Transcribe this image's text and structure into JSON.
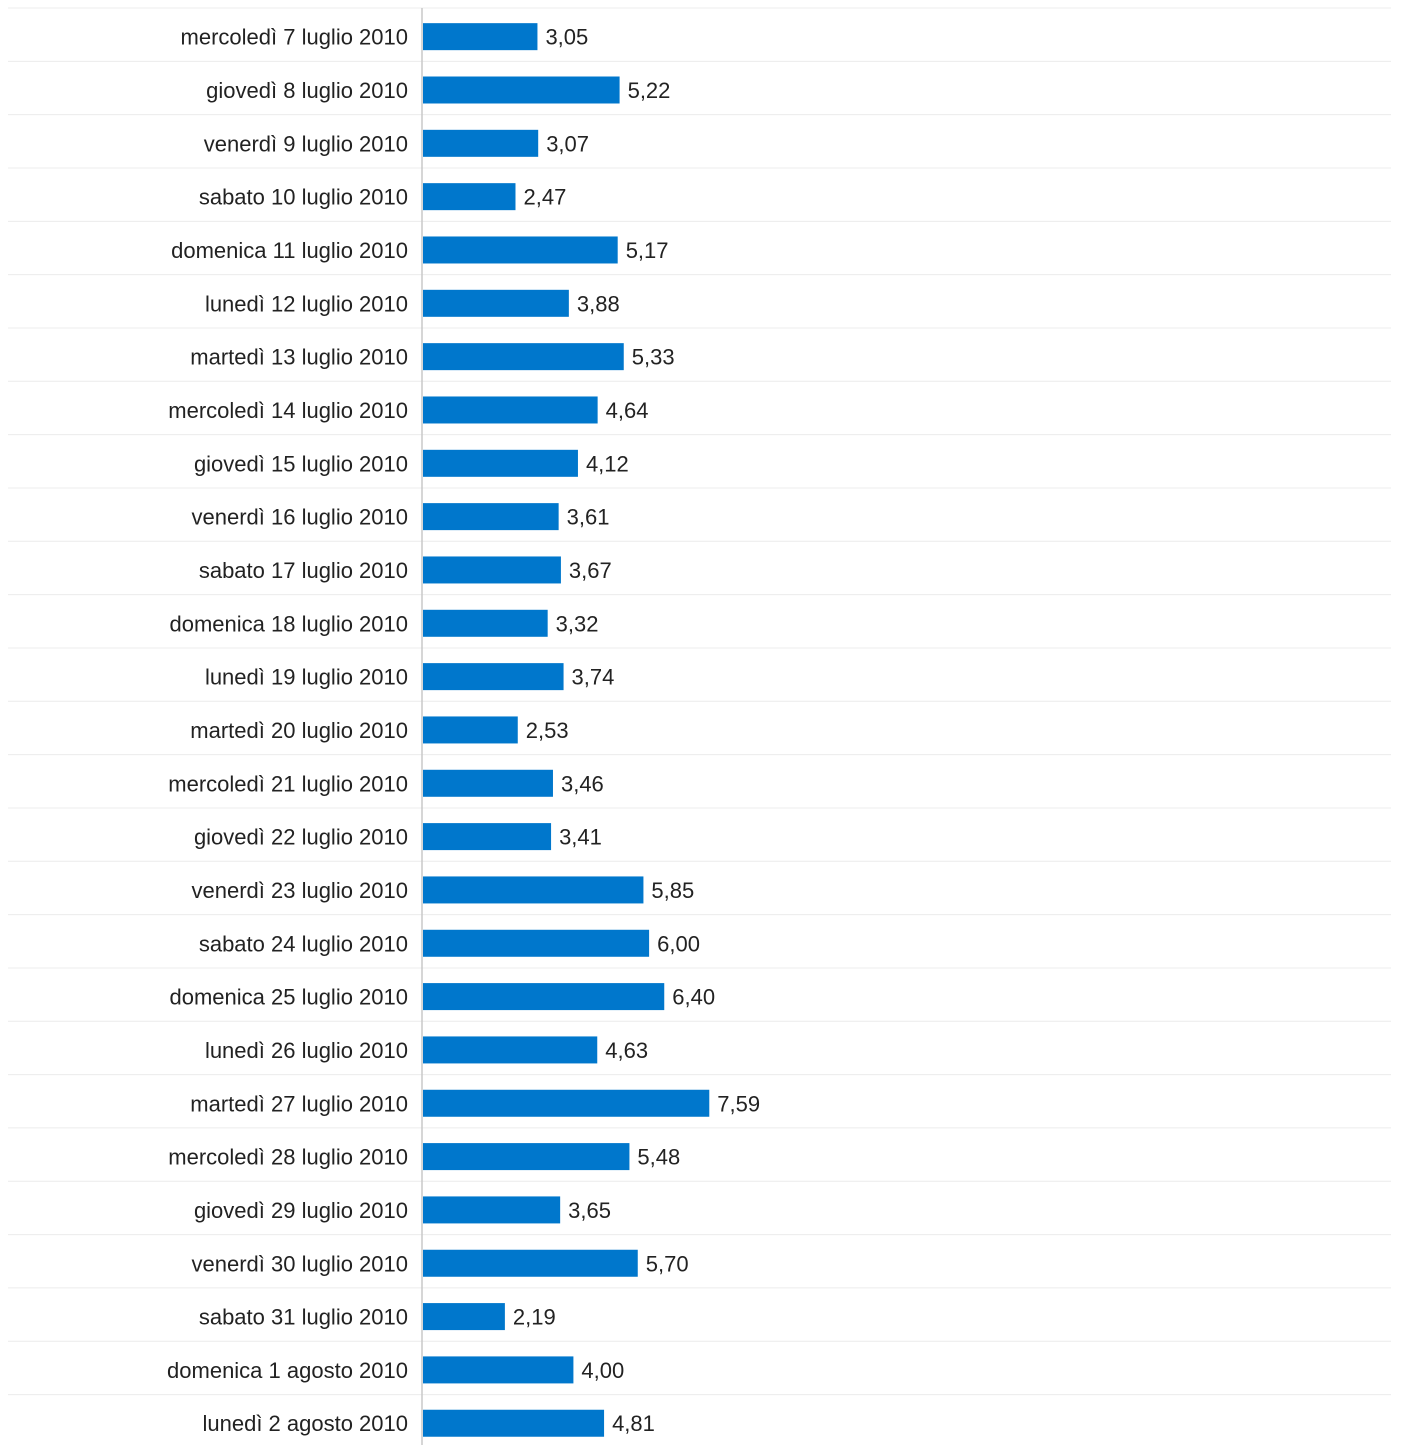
{
  "chart_data": {
    "type": "bar",
    "orientation": "horizontal",
    "title": "",
    "xlabel": "",
    "ylabel": "",
    "grid": true,
    "legend": "none",
    "bar_color": "#0077cc",
    "categories": [
      "mercoledì 7 luglio 2010",
      "giovedì 8 luglio 2010",
      "venerdì 9 luglio 2010",
      "sabato 10 luglio 2010",
      "domenica 11 luglio 2010",
      "lunedì 12 luglio 2010",
      "martedì 13 luglio 2010",
      "mercoledì 14 luglio 2010",
      "giovedì 15 luglio 2010",
      "venerdì 16 luglio 2010",
      "sabato 17 luglio 2010",
      "domenica 18 luglio 2010",
      "lunedì 19 luglio 2010",
      "martedì 20 luglio 2010",
      "mercoledì 21 luglio 2010",
      "giovedì 22 luglio 2010",
      "venerdì 23 luglio 2010",
      "sabato 24 luglio 2010",
      "domenica 25 luglio 2010",
      "lunedì 26 luglio 2010",
      "martedì 27 luglio 2010",
      "mercoledì 28 luglio 2010",
      "giovedì 29 luglio 2010",
      "venerdì 30 luglio 2010",
      "sabato 31 luglio 2010",
      "domenica 1 agosto 2010",
      "lunedì 2 agosto 2010"
    ],
    "values": [
      3.05,
      5.22,
      3.07,
      2.47,
      5.17,
      3.88,
      5.33,
      4.64,
      4.12,
      3.61,
      3.67,
      3.32,
      3.74,
      2.53,
      3.46,
      3.41,
      5.85,
      6.0,
      6.4,
      4.63,
      7.59,
      5.48,
      3.65,
      5.7,
      2.19,
      4.0,
      4.81
    ],
    "value_labels": [
      "3,05",
      "5,22",
      "3,07",
      "2,47",
      "5,17",
      "3,88",
      "5,33",
      "4,64",
      "4,12",
      "3,61",
      "3,67",
      "3,32",
      "3,74",
      "2,53",
      "3,46",
      "3,41",
      "5,85",
      "6,00",
      "6,40",
      "4,63",
      "7,59",
      "5,48",
      "3,65",
      "5,70",
      "2,19",
      "4,00",
      "4,81"
    ],
    "xlim": [
      0,
      25.6
    ]
  }
}
